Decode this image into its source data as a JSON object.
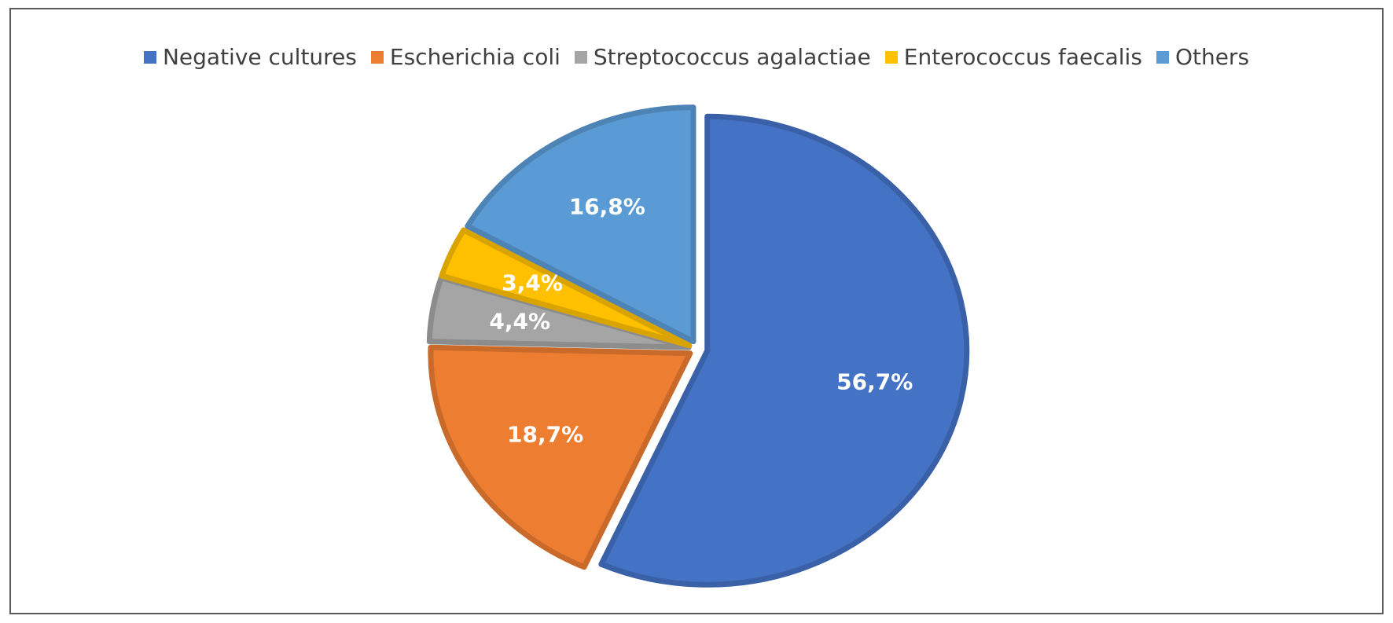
{
  "chart_data": {
    "type": "pie",
    "title": "",
    "legend_position": "top",
    "slices": [
      {
        "name": "Negative cultures",
        "value": 56.7,
        "label": "56,7%",
        "color": "#4472C4"
      },
      {
        "name": "Escherichia coli",
        "value": 18.7,
        "label": "18,7%",
        "color": "#ED7D31"
      },
      {
        "name": "Streptococcus agalactiae",
        "value": 4.4,
        "label": "4,4%",
        "color": "#A5A5A5"
      },
      {
        "name": "Enterococcus faecalis",
        "value": 3.4,
        "label": "3,4%",
        "color": "#FFC000"
      },
      {
        "name": "Others",
        "value": 16.8,
        "label": "16,8%",
        "color": "#5B9BD5"
      }
    ]
  }
}
